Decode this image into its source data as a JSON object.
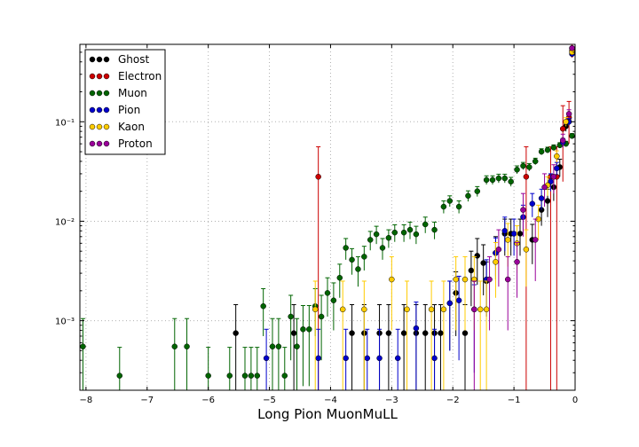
{
  "chart_data": {
    "type": "scatter",
    "xlabel": "Long Pion MuonMuLL",
    "ylabel": "",
    "xlim": [
      -8.1,
      0
    ],
    "ylim": [
      0.0002,
      0.6
    ],
    "yscale": "log",
    "grid": true,
    "legend_position": "top-left",
    "x_ticks": [
      -8,
      -7,
      -6,
      -5,
      -4,
      -3,
      -2,
      -1,
      0
    ],
    "x_tick_labels": [
      "−8",
      "−7",
      "−6",
      "−5",
      "−4",
      "−3",
      "−2",
      "−1",
      "0"
    ],
    "y_ticks": [
      0.001,
      0.01,
      0.1
    ],
    "y_tick_labels": [
      "10⁻³",
      "10⁻²",
      "10⁻¹"
    ],
    "series": [
      {
        "name": "Ghost",
        "color": "#000000",
        "points": [
          [
            -5.55,
            0.00075,
            0.0007
          ],
          [
            -4.6,
            0.00075,
            0.0007
          ],
          [
            -3.65,
            0.00075,
            0.0007
          ],
          [
            -3.45,
            0.00075,
            0.0007
          ],
          [
            -3.2,
            0.00075,
            0.0007
          ],
          [
            -3.05,
            0.00075,
            0.0007
          ],
          [
            -2.8,
            0.00075,
            0.0007
          ],
          [
            -2.6,
            0.00075,
            0.0007
          ],
          [
            -2.45,
            0.00075,
            0.0007
          ],
          [
            -2.3,
            0.00075,
            0.0007
          ],
          [
            -2.2,
            0.00075,
            0.0007
          ],
          [
            -2.05,
            0.0015,
            0.001
          ],
          [
            -1.95,
            0.0019,
            0.0012
          ],
          [
            -1.8,
            0.00075,
            0.0007
          ],
          [
            -1.7,
            0.0032,
            0.0018
          ],
          [
            -1.6,
            0.0045,
            0.0022
          ],
          [
            -1.5,
            0.0038,
            0.002
          ],
          [
            -1.45,
            0.0025,
            0.0014
          ],
          [
            -1.3,
            0.0048,
            0.0022
          ],
          [
            -1.15,
            0.0075,
            0.003
          ],
          [
            -1.05,
            0.0075,
            0.003
          ],
          [
            -0.9,
            0.0075,
            0.003
          ],
          [
            -0.7,
            0.0065,
            0.0028
          ],
          [
            -0.55,
            0.013,
            0.004
          ],
          [
            -0.45,
            0.016,
            0.005
          ],
          [
            -0.35,
            0.022,
            0.006
          ],
          [
            -0.25,
            0.035,
            0.007
          ],
          [
            -0.15,
            0.09,
            0.01
          ],
          [
            -0.05,
            0.55,
            0.02
          ]
        ]
      },
      {
        "name": "Electron",
        "color": "#cc0000",
        "points": [
          [
            -4.2,
            0.028,
            0.028
          ],
          [
            -0.8,
            0.028,
            0.028
          ],
          [
            -0.4,
            0.028,
            0.028
          ],
          [
            -0.3,
            0.028,
            0.028
          ],
          [
            -0.2,
            0.085,
            0.06
          ],
          [
            -0.1,
            0.11,
            0.05
          ],
          [
            -0.05,
            0.52,
            0.08
          ]
        ]
      },
      {
        "name": "Muon",
        "color": "#006400",
        "points": [
          [
            -8.05,
            0.00055,
            0.0005
          ],
          [
            -7.45,
            0.00028,
            0.00026
          ],
          [
            -6.55,
            0.00055,
            0.0005
          ],
          [
            -6.35,
            0.00055,
            0.0005
          ],
          [
            -6.0,
            0.00028,
            0.00026
          ],
          [
            -5.65,
            0.00028,
            0.00026
          ],
          [
            -5.4,
            0.00028,
            0.00026
          ],
          [
            -5.3,
            0.00028,
            0.00026
          ],
          [
            -5.2,
            0.00028,
            0.00026
          ],
          [
            -5.1,
            0.0014,
            0.0007
          ],
          [
            -4.95,
            0.00055,
            0.0005
          ],
          [
            -4.85,
            0.00055,
            0.0005
          ],
          [
            -4.75,
            0.00028,
            0.00026
          ],
          [
            -4.65,
            0.0011,
            0.0007
          ],
          [
            -4.55,
            0.00055,
            0.0005
          ],
          [
            -4.45,
            0.00082,
            0.0006
          ],
          [
            -4.35,
            0.00082,
            0.0006
          ],
          [
            -4.25,
            0.0014,
            0.0007
          ],
          [
            -4.15,
            0.0011,
            0.0007
          ],
          [
            -4.05,
            0.0019,
            0.0008
          ],
          [
            -3.95,
            0.0016,
            0.0008
          ],
          [
            -3.85,
            0.0027,
            0.001
          ],
          [
            -3.75,
            0.0054,
            0.0013
          ],
          [
            -3.65,
            0.0041,
            0.0012
          ],
          [
            -3.55,
            0.0033,
            0.0011
          ],
          [
            -3.45,
            0.0044,
            0.0012
          ],
          [
            -3.35,
            0.0065,
            0.0014
          ],
          [
            -3.25,
            0.0074,
            0.0015
          ],
          [
            -3.15,
            0.0054,
            0.0013
          ],
          [
            -3.05,
            0.0068,
            0.0014
          ],
          [
            -2.95,
            0.0077,
            0.0015
          ],
          [
            -2.8,
            0.0077,
            0.0015
          ],
          [
            -2.7,
            0.0082,
            0.0016
          ],
          [
            -2.6,
            0.0074,
            0.0015
          ],
          [
            -2.45,
            0.0093,
            0.0017
          ],
          [
            -2.3,
            0.0082,
            0.0016
          ],
          [
            -2.15,
            0.014,
            0.002
          ],
          [
            -2.05,
            0.016,
            0.002
          ],
          [
            -1.9,
            0.014,
            0.002
          ],
          [
            -1.75,
            0.018,
            0.0022
          ],
          [
            -1.6,
            0.02,
            0.0023
          ],
          [
            -1.45,
            0.026,
            0.0026
          ],
          [
            -1.35,
            0.026,
            0.0026
          ],
          [
            -1.25,
            0.027,
            0.0027
          ],
          [
            -1.15,
            0.027,
            0.0027
          ],
          [
            -1.05,
            0.025,
            0.0026
          ],
          [
            -0.95,
            0.033,
            0.003
          ],
          [
            -0.85,
            0.036,
            0.003
          ],
          [
            -0.75,
            0.035,
            0.003
          ],
          [
            -0.65,
            0.04,
            0.003
          ],
          [
            -0.55,
            0.05,
            0.0035
          ],
          [
            -0.45,
            0.052,
            0.0035
          ],
          [
            -0.35,
            0.055,
            0.0035
          ],
          [
            -0.25,
            0.058,
            0.0036
          ],
          [
            -0.15,
            0.06,
            0.0036
          ],
          [
            -0.05,
            0.072,
            0.004
          ]
        ]
      },
      {
        "name": "Pion",
        "color": "#0000cc",
        "points": [
          [
            -5.05,
            0.00042,
            0.0004
          ],
          [
            -4.2,
            0.00042,
            0.0004
          ],
          [
            -3.75,
            0.00042,
            0.0004
          ],
          [
            -3.4,
            0.00042,
            0.0004
          ],
          [
            -3.2,
            0.00042,
            0.0004
          ],
          [
            -2.9,
            0.00042,
            0.0004
          ],
          [
            -2.6,
            0.00084,
            0.0007
          ],
          [
            -2.3,
            0.00042,
            0.0004
          ],
          [
            -2.05,
            0.0015,
            0.001
          ],
          [
            -1.9,
            0.0016,
            0.0012
          ],
          [
            -1.65,
            0.0013,
            0.001
          ],
          [
            -1.45,
            0.0026,
            0.0015
          ],
          [
            -1.3,
            0.0048,
            0.002
          ],
          [
            -1.15,
            0.008,
            0.003
          ],
          [
            -1.0,
            0.0075,
            0.003
          ],
          [
            -0.85,
            0.011,
            0.0035
          ],
          [
            -0.7,
            0.015,
            0.004
          ],
          [
            -0.55,
            0.017,
            0.004
          ],
          [
            -0.4,
            0.025,
            0.005
          ],
          [
            -0.3,
            0.034,
            0.005
          ],
          [
            -0.2,
            0.062,
            0.006
          ],
          [
            -0.1,
            0.1,
            0.008
          ],
          [
            -0.05,
            0.48,
            0.02
          ]
        ]
      },
      {
        "name": "Kaon",
        "color": "#ffcc00",
        "points": [
          [
            -4.25,
            0.0013,
            0.0012
          ],
          [
            -3.8,
            0.0013,
            0.0012
          ],
          [
            -3.45,
            0.0013,
            0.0012
          ],
          [
            -3.0,
            0.0026,
            0.0018
          ],
          [
            -2.75,
            0.0013,
            0.0012
          ],
          [
            -2.35,
            0.0013,
            0.0012
          ],
          [
            -2.15,
            0.0013,
            0.0012
          ],
          [
            -1.95,
            0.0026,
            0.0018
          ],
          [
            -1.8,
            0.0026,
            0.0018
          ],
          [
            -1.65,
            0.0026,
            0.0018
          ],
          [
            -1.55,
            0.0013,
            0.0012
          ],
          [
            -1.45,
            0.0013,
            0.0012
          ],
          [
            -1.3,
            0.0039,
            0.0022
          ],
          [
            -1.1,
            0.0065,
            0.003
          ],
          [
            -0.95,
            0.006,
            0.003
          ],
          [
            -0.8,
            0.0052,
            0.003
          ],
          [
            -0.6,
            0.0105,
            0.004
          ],
          [
            -0.45,
            0.023,
            0.005
          ],
          [
            -0.3,
            0.045,
            0.006
          ],
          [
            -0.15,
            0.1,
            0.01
          ],
          [
            -0.05,
            0.5,
            0.02
          ]
        ]
      },
      {
        "name": "Proton",
        "color": "#990099",
        "points": [
          [
            -1.65,
            0.0013,
            0.0012
          ],
          [
            -1.4,
            0.0026,
            0.0018
          ],
          [
            -1.25,
            0.0052,
            0.003
          ],
          [
            -1.1,
            0.0026,
            0.0018
          ],
          [
            -0.95,
            0.0039,
            0.0022
          ],
          [
            -0.85,
            0.013,
            0.006
          ],
          [
            -0.65,
            0.0065,
            0.004
          ],
          [
            -0.5,
            0.022,
            0.008
          ],
          [
            -0.35,
            0.028,
            0.009
          ],
          [
            -0.2,
            0.065,
            0.01
          ],
          [
            -0.1,
            0.12,
            0.012
          ],
          [
            -0.05,
            0.55,
            0.02
          ]
        ]
      }
    ]
  }
}
